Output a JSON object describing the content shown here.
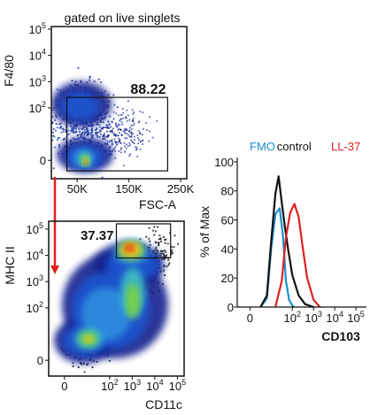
{
  "colors": {
    "density": [
      "#16248f",
      "#1f55d0",
      "#2f8fe0",
      "#3cbfc4",
      "#7fd23d",
      "#f2d21a",
      "#f08a1e",
      "#e3221c"
    ],
    "fmo": "#1a8fd1",
    "control": "#111111",
    "ll37": "#e02020",
    "arrow": "#e02020"
  },
  "chart_data": [
    {
      "id": "plot1",
      "type": "scatter",
      "subtitle": "gated on live singlets",
      "xlabel": "FSC-A",
      "ylabel": "F4/80",
      "x_ticks": [
        {
          "text": "50K",
          "pos": 50000
        },
        {
          "text": "150K",
          "pos": 150000
        },
        {
          "text": "250K",
          "pos": 250000
        }
      ],
      "xlim": [
        0,
        262000
      ],
      "y_ticks": [
        {
          "base": "0",
          "exp": "",
          "pos": 0
        },
        {
          "base": "10",
          "exp": "2",
          "pos": 2
        },
        {
          "base": "10",
          "exp": "3",
          "pos": 3
        },
        {
          "base": "10",
          "exp": "4",
          "pos": 4
        },
        {
          "base": "10",
          "exp": "5",
          "pos": 5
        }
      ],
      "ylim": [
        -0.7,
        5.1
      ],
      "gate": {
        "label": "88.22",
        "x": [
          30000,
          225000
        ],
        "y": [
          -0.4,
          2.4
        ]
      }
    },
    {
      "id": "plot2",
      "type": "scatter",
      "xlabel": "CD11c",
      "ylabel": "MHC II",
      "x_ticks": [
        {
          "base": "0",
          "exp": "",
          "pos": 0
        },
        {
          "base": "10",
          "exp": "2",
          "pos": 2
        },
        {
          "base": "10",
          "exp": "3",
          "pos": 3
        },
        {
          "base": "10",
          "exp": "4",
          "pos": 4
        },
        {
          "base": "10",
          "exp": "5",
          "pos": 5
        }
      ],
      "xlim": [
        -0.7,
        5.3
      ],
      "y_ticks": [
        {
          "base": "0",
          "exp": "",
          "pos": 0
        },
        {
          "base": "10",
          "exp": "2",
          "pos": 2
        },
        {
          "base": "10",
          "exp": "3",
          "pos": 3
        },
        {
          "base": "10",
          "exp": "4",
          "pos": 4
        },
        {
          "base": "10",
          "exp": "5",
          "pos": 5
        }
      ],
      "ylim": [
        -0.6,
        5.3
      ],
      "gate": {
        "label": "37.37",
        "x": [
          2.3,
          4.7
        ],
        "y": [
          3.9,
          5.2
        ]
      }
    },
    {
      "id": "plot3",
      "type": "line",
      "xlabel": "CD103",
      "ylabel": "% of Max",
      "legend": [
        {
          "name": "FMO",
          "color": "#1a8fd1"
        },
        {
          "name": "control",
          "color": "#111111"
        },
        {
          "name": "LL-37",
          "color": "#e02020"
        }
      ],
      "x_ticks": [
        {
          "base": "0",
          "exp": "",
          "pos": 0
        },
        {
          "base": "10",
          "exp": "2",
          "pos": 2
        },
        {
          "base": "10",
          "exp": "3",
          "pos": 3
        },
        {
          "base": "10",
          "exp": "4",
          "pos": 4
        },
        {
          "base": "10",
          "exp": "5",
          "pos": 5
        }
      ],
      "xlim": [
        -0.6,
        5.5
      ],
      "y_ticks": [
        {
          "text": "0",
          "pos": 0
        },
        {
          "text": "20",
          "pos": 20
        },
        {
          "text": "40",
          "pos": 40
        },
        {
          "text": "60",
          "pos": 60
        },
        {
          "text": "80",
          "pos": 80
        },
        {
          "text": "100",
          "pos": 100
        }
      ],
      "ylim": [
        0,
        103
      ],
      "series": [
        {
          "name": "FMO",
          "color": "#1a8fd1",
          "x": [
            0.5,
            0.8,
            1.0,
            1.2,
            1.4,
            1.55,
            1.7,
            1.85,
            2.0,
            2.1
          ],
          "y": [
            0,
            6,
            40,
            64,
            68,
            50,
            18,
            5,
            1,
            0
          ]
        },
        {
          "name": "control",
          "color": "#111111",
          "x": [
            0.5,
            0.8,
            1.0,
            1.2,
            1.35,
            1.5,
            1.65,
            1.8,
            2.0,
            2.3,
            2.6,
            3.0
          ],
          "y": [
            0,
            8,
            45,
            78,
            90,
            72,
            55,
            40,
            22,
            8,
            2,
            0
          ]
        },
        {
          "name": "LL-37",
          "color": "#e02020",
          "x": [
            1.2,
            1.5,
            1.7,
            1.9,
            2.1,
            2.3,
            2.5,
            2.7,
            3.0,
            3.3
          ],
          "y": [
            0,
            18,
            48,
            65,
            71,
            62,
            40,
            20,
            5,
            0
          ]
        }
      ]
    }
  ]
}
